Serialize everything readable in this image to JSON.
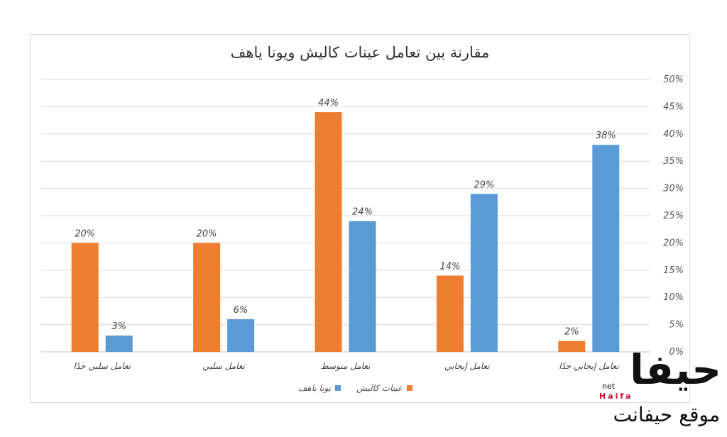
{
  "chart_data": {
    "type": "bar",
    "title": "مقارنة بين تعامل عينات كاليش ويونا ياهف",
    "categories": [
      "تعامل إيجابي جدًا",
      "تعامل إيجابي",
      "تعامل متوسط",
      "تعامل سلبي",
      "تعامل سلبي جدًا"
    ],
    "series": [
      {
        "name": "عينات كاليش",
        "color": "#ED7D31",
        "values": [
          2,
          14,
          44,
          20,
          20
        ],
        "labels": [
          "2%",
          "14%",
          "44%",
          "20%",
          "20%"
        ]
      },
      {
        "name": "يونا ياهف",
        "color": "#5B9BD5",
        "values": [
          38,
          29,
          24,
          6,
          3
        ],
        "labels": [
          "38%",
          "29%",
          "24%",
          "6%",
          "3%"
        ]
      }
    ],
    "y_axis": {
      "min": 0,
      "max": 50,
      "ticks": [
        "0%",
        "5%",
        "10%",
        "15%",
        "20%",
        "25%",
        "30%",
        "35%",
        "40%",
        "45%",
        "50%"
      ],
      "position": "right"
    },
    "grid": true,
    "legend_position": "bottom"
  },
  "watermark": {
    "logo_text": "حيفا",
    "latin_text": "Haifa",
    "domain_text": "net",
    "subtitle": "موقع حيفانت"
  }
}
